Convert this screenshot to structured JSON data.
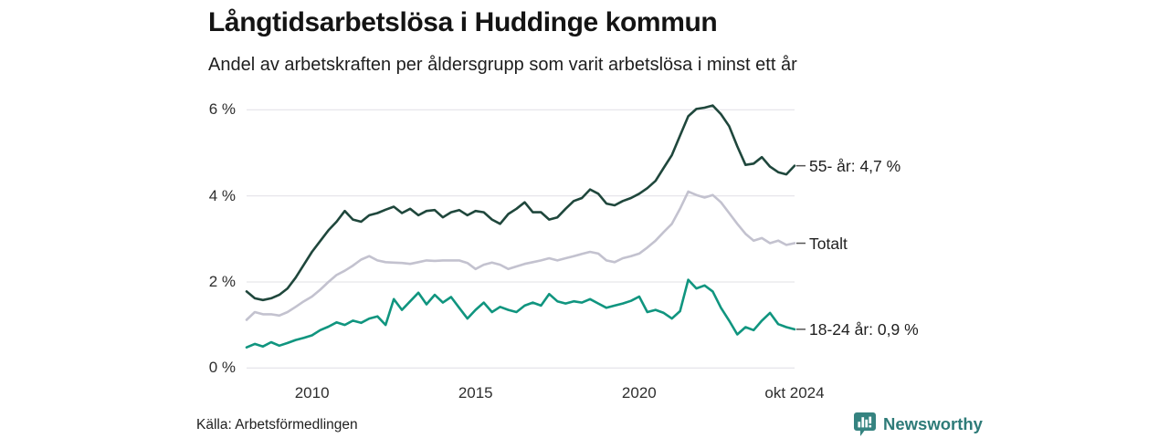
{
  "header": {
    "title": "Långtidsarbetslösa i Huddinge kommun",
    "subtitle": "Andel av arbetskraften per åldersgrupp som varit arbetslösa i minst ett år"
  },
  "footer": {
    "source": "Källa: Arbetsförmedlingen",
    "brand_name": "Newsworthy",
    "brand_color": "#2e7b78",
    "brand_icon": "bar-chart-speech-bubble-icon",
    "brand_icon_color": "#358380"
  },
  "chart_data": {
    "type": "line",
    "title": "Långtidsarbetslösa i Huddinge kommun",
    "subtitle": "Andel av arbetskraften per åldersgrupp som varit arbetslösa i minst ett år",
    "unit": "% av arbetskraften",
    "x_start": 2008.0,
    "x_step": 0.25,
    "x_end_label": "okt 2024",
    "ylim": [
      0,
      6.4
    ],
    "grid": "horizontal",
    "grid_color": "#e7e6eb",
    "axis_text_color": "#2e2e2e",
    "legend_position": "right-end-labels",
    "y_ticks": [
      {
        "label": "0 %",
        "value": 0
      },
      {
        "label": "2 %",
        "value": 2
      },
      {
        "label": "4 %",
        "value": 4
      },
      {
        "label": "6 %",
        "value": 6
      }
    ],
    "x_ticks": [
      {
        "label": "2010",
        "t": 2010
      },
      {
        "label": "2015",
        "t": 2015
      },
      {
        "label": "2020",
        "t": 2020
      },
      {
        "label": "okt 2024",
        "t": 2024.75
      }
    ],
    "series": [
      {
        "name": "55- år",
        "end_label": "55- år: 4,7 %",
        "latest_value": "4,7 %",
        "color": "#1f473c",
        "values": [
          1.78,
          1.62,
          1.58,
          1.62,
          1.7,
          1.85,
          2.1,
          2.4,
          2.7,
          2.95,
          3.2,
          3.4,
          3.65,
          3.45,
          3.4,
          3.55,
          3.6,
          3.68,
          3.75,
          3.6,
          3.7,
          3.55,
          3.65,
          3.67,
          3.5,
          3.62,
          3.67,
          3.55,
          3.65,
          3.62,
          3.45,
          3.35,
          3.58,
          3.7,
          3.85,
          3.62,
          3.62,
          3.45,
          3.5,
          3.7,
          3.88,
          3.95,
          4.15,
          4.05,
          3.82,
          3.78,
          3.88,
          3.95,
          4.05,
          4.18,
          4.35,
          4.65,
          4.95,
          5.4,
          5.85,
          6.02,
          6.05,
          6.1,
          5.9,
          5.62,
          5.15,
          4.72,
          4.75,
          4.9,
          4.68,
          4.55,
          4.5,
          4.7
        ]
      },
      {
        "name": "Totalt",
        "end_label": "Totalt",
        "latest_value": null,
        "color": "#c3c2cf",
        "values": [
          1.12,
          1.3,
          1.25,
          1.25,
          1.22,
          1.3,
          1.42,
          1.55,
          1.66,
          1.82,
          2.0,
          2.16,
          2.26,
          2.38,
          2.52,
          2.6,
          2.5,
          2.46,
          2.45,
          2.44,
          2.42,
          2.46,
          2.5,
          2.49,
          2.5,
          2.5,
          2.5,
          2.44,
          2.3,
          2.4,
          2.45,
          2.4,
          2.3,
          2.36,
          2.42,
          2.46,
          2.5,
          2.55,
          2.5,
          2.55,
          2.6,
          2.65,
          2.7,
          2.66,
          2.5,
          2.46,
          2.55,
          2.6,
          2.66,
          2.8,
          2.96,
          3.16,
          3.35,
          3.7,
          4.1,
          4.02,
          3.96,
          4.02,
          3.85,
          3.6,
          3.35,
          3.12,
          2.96,
          3.02,
          2.9,
          2.96,
          2.86,
          2.9
        ]
      },
      {
        "name": "18-24 år",
        "end_label": "18-24 år: 0,9 %",
        "latest_value": "0,9 %",
        "color": "#10957f",
        "values": [
          0.48,
          0.56,
          0.5,
          0.6,
          0.52,
          0.58,
          0.65,
          0.7,
          0.76,
          0.88,
          0.96,
          1.06,
          1.0,
          1.1,
          1.05,
          1.15,
          1.2,
          1.0,
          1.6,
          1.35,
          1.55,
          1.75,
          1.48,
          1.7,
          1.52,
          1.65,
          1.4,
          1.15,
          1.35,
          1.52,
          1.3,
          1.42,
          1.35,
          1.3,
          1.45,
          1.52,
          1.45,
          1.72,
          1.55,
          1.5,
          1.55,
          1.52,
          1.6,
          1.5,
          1.4,
          1.45,
          1.5,
          1.56,
          1.66,
          1.3,
          1.35,
          1.28,
          1.15,
          1.32,
          2.05,
          1.85,
          1.92,
          1.78,
          1.4,
          1.1,
          0.78,
          0.95,
          0.88,
          1.1,
          1.28,
          1.02,
          0.95,
          0.9
        ]
      }
    ]
  }
}
